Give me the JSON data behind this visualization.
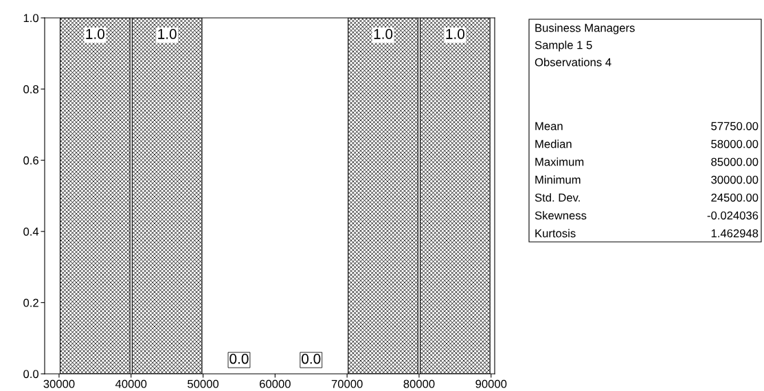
{
  "chart_data": {
    "type": "histogram",
    "bins": [
      30000,
      40000,
      50000,
      60000,
      70000,
      80000,
      90000
    ],
    "values": [
      1.0,
      1.0,
      0.0,
      0.0,
      1.0,
      1.0
    ],
    "color": "#000000",
    "value_labels": [
      "1.0",
      "1.0",
      "0.0",
      "0.0",
      "1.0",
      "1.0"
    ],
    "xlim": [
      28000,
      90500
    ],
    "xticks": [
      30000,
      40000,
      50000,
      60000,
      70000,
      80000,
      90000
    ],
    "ylim": [
      0,
      1
    ],
    "yticks": [
      {
        "value": 0,
        "label": "0.0"
      },
      {
        "value": 0.2,
        "label": "0.2"
      },
      {
        "value": 0.4,
        "label": "0.4"
      },
      {
        "value": 0.6,
        "label": "0.6"
      },
      {
        "value": 0.8,
        "label": "0.8"
      },
      {
        "value": 1,
        "label": "1.0"
      }
    ],
    "grid": false,
    "annotations": [
      "Business Managers",
      "Sample 1 5",
      "Observations 4",
      "Mean\t57750.00",
      "Median\t58000.00",
      "Maximum\t85000.00",
      "Minimum\t30000.00",
      "Std. Dev.\t24500.00",
      "Skewness\t-0.024036",
      "Kurtosis\t1.462948"
    ]
  }
}
